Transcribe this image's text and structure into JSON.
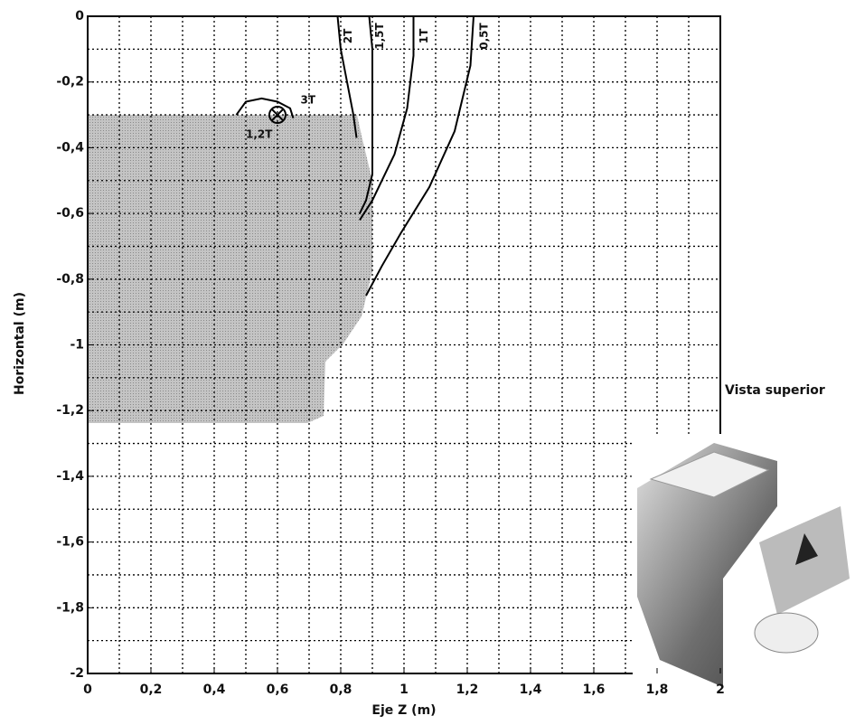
{
  "chart_data": {
    "type": "line",
    "xlabel": "Eje Z (m)",
    "ylabel": "Horizontal (m)",
    "xlim": [
      0,
      2
    ],
    "ylim": [
      -2,
      0
    ],
    "xticks": [
      0,
      {
        "value": 0.2,
        "label": "0,2"
      },
      {
        "value": 0.4,
        "label": "0,4"
      },
      {
        "value": 0.6,
        "label": "0,6"
      },
      {
        "value": 0.8,
        "label": "0,8"
      },
      1,
      {
        "value": 1.2,
        "label": "1,2"
      },
      {
        "value": 1.4,
        "label": "1,4"
      },
      {
        "value": 1.6,
        "label": "1,6"
      },
      {
        "value": 1.8,
        "label": "1,8"
      },
      2
    ],
    "yticks": [
      0,
      {
        "value": -0.2,
        "label": "-0,2"
      },
      {
        "value": -0.4,
        "label": "-0,4"
      },
      {
        "value": -0.6,
        "label": "-0,6"
      },
      {
        "value": -0.8,
        "label": "-0,8"
      },
      -1,
      {
        "value": -1.2,
        "label": "-1,2"
      },
      {
        "value": -1.4,
        "label": "-1,4"
      },
      {
        "value": -1.6,
        "label": "-1,6"
      },
      {
        "value": -1.8,
        "label": "-1,8"
      },
      -2
    ],
    "grid": true,
    "series": [
      {
        "name": "2T",
        "color": "#000000",
        "x": [
          0.79,
          0.8,
          0.82,
          0.84,
          0.85
        ],
        "values": [
          0,
          -0.1,
          -0.2,
          -0.3,
          -0.37
        ]
      },
      {
        "name": "1,5T",
        "color": "#000000",
        "x": [
          0.89,
          0.9,
          0.9,
          0.9,
          0.88,
          0.86
        ],
        "values": [
          0,
          -0.1,
          -0.3,
          -0.48,
          -0.56,
          -0.6
        ]
      },
      {
        "name": "1T",
        "color": "#000000",
        "x": [
          1.03,
          1.03,
          1.01,
          0.97,
          0.9,
          0.86
        ],
        "values": [
          0,
          -0.12,
          -0.28,
          -0.42,
          -0.56,
          -0.62
        ]
      },
      {
        "name": "0,5T",
        "color": "#000000",
        "x": [
          1.22,
          1.21,
          1.16,
          1.08,
          0.99,
          0.93,
          0.88
        ],
        "values": [
          0,
          -0.15,
          -0.35,
          -0.52,
          -0.66,
          -0.76,
          -0.85
        ]
      },
      {
        "name": "3T",
        "color": "#000000",
        "x": [
          0.47,
          0.5,
          0.55,
          0.6,
          0.64,
          0.65
        ],
        "values": [
          -0.3,
          -0.26,
          -0.25,
          -0.26,
          -0.28,
          -0.31
        ]
      }
    ],
    "annotations": [
      "1,2T",
      "Vista superior"
    ]
  }
}
